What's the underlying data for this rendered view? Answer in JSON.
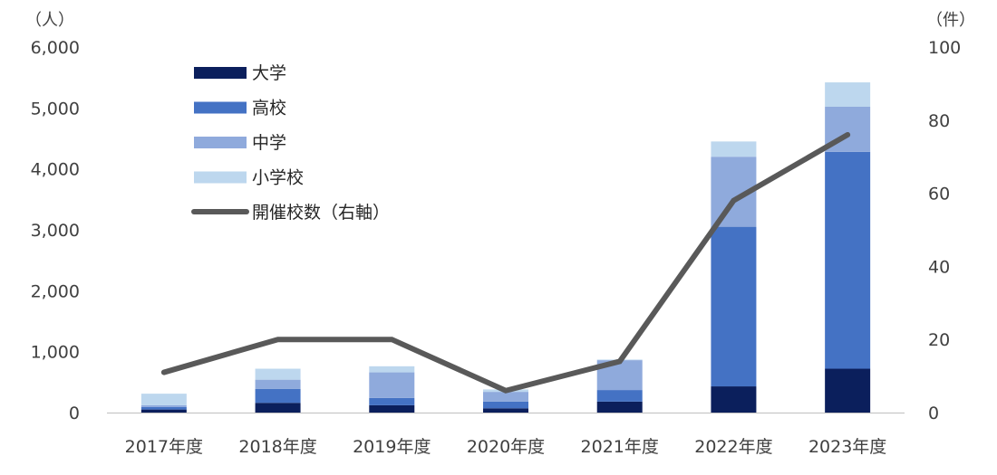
{
  "chart_data": {
    "type": "bar",
    "stacked": true,
    "categories": [
      "2017年度",
      "2018年度",
      "2019年度",
      "2020年度",
      "2021年度",
      "2022年度",
      "2023年度"
    ],
    "series": [
      {
        "name": "大学",
        "axis": "left",
        "color": "#0b1f5c",
        "values": [
          50,
          160,
          120,
          70,
          180,
          430,
          720
        ]
      },
      {
        "name": "高校",
        "axis": "left",
        "color": "#4472c4",
        "values": [
          40,
          230,
          120,
          110,
          190,
          2620,
          3560
        ]
      },
      {
        "name": "中学",
        "axis": "left",
        "color": "#8faadc",
        "values": [
          30,
          150,
          420,
          160,
          490,
          1150,
          740
        ]
      },
      {
        "name": "小学校",
        "axis": "left",
        "color": "#bdd7ee",
        "values": [
          190,
          180,
          100,
          40,
          10,
          250,
          400
        ]
      },
      {
        "name": "開催校数（右軸）",
        "type": "line",
        "axis": "right",
        "color": "#595959",
        "values": [
          11,
          20,
          20,
          6,
          14,
          58,
          76
        ]
      }
    ],
    "y_left": {
      "unit": "（人）",
      "ylim": [
        0,
        6000
      ],
      "ticks": [
        "0",
        "1,000",
        "2,000",
        "3,000",
        "4,000",
        "5,000",
        "6,000"
      ]
    },
    "y_right": {
      "unit": "（件）",
      "ylim": [
        0,
        100
      ],
      "ticks": [
        "0",
        "20",
        "40",
        "60",
        "80",
        "100"
      ]
    },
    "grid": false,
    "legend_position": "top-left"
  }
}
